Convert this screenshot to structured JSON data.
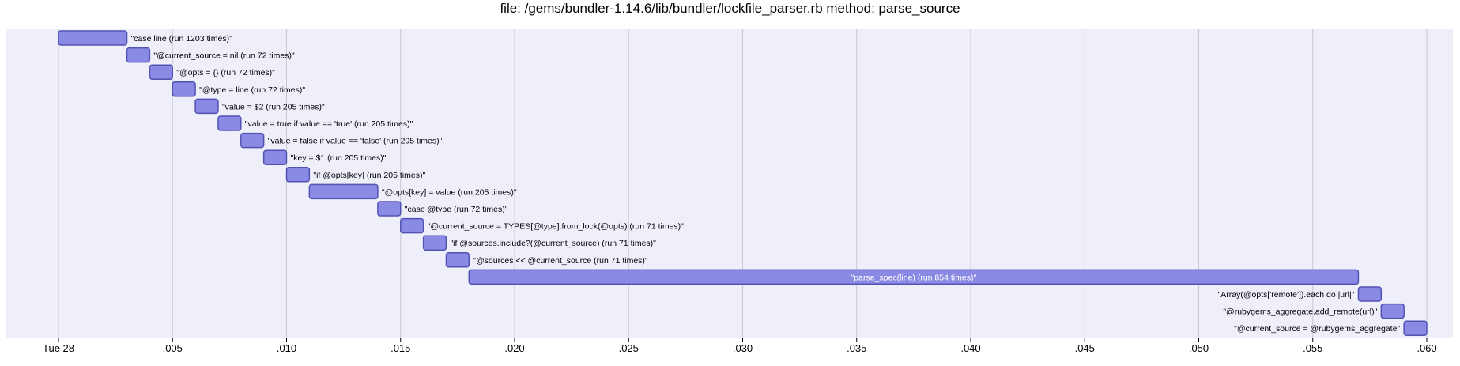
{
  "title": "file: /gems/bundler-1.14.6/lib/bundler/lockfile_parser.rb method: parse_source",
  "colors": {
    "background_band": "#efeffa",
    "grid": "#c8c8d4",
    "bar_fill": "#8a8ae4",
    "bar_stroke": "#5252b5",
    "axis_line": "#000000"
  },
  "chart_data": {
    "type": "gantt",
    "title": "file: /gems/bundler-1.14.6/lib/bundler/lockfile_parser.rb method: parse_source",
    "xlim": [
      0,
      0.0605
    ],
    "ticks": [
      {
        "value": 0,
        "label": "Tue 28"
      },
      {
        "value": 0.005,
        "label": ".005"
      },
      {
        "value": 0.01,
        "label": ".010"
      },
      {
        "value": 0.015,
        "label": ".015"
      },
      {
        "value": 0.02,
        "label": ".020"
      },
      {
        "value": 0.025,
        "label": ".025"
      },
      {
        "value": 0.03,
        "label": ".030"
      },
      {
        "value": 0.035,
        "label": ".035"
      },
      {
        "value": 0.04,
        "label": ".040"
      },
      {
        "value": 0.045,
        "label": ".045"
      },
      {
        "value": 0.05,
        "label": ".050"
      },
      {
        "value": 0.055,
        "label": ".055"
      },
      {
        "value": 0.06,
        "label": ".060"
      }
    ],
    "grid": true,
    "tasks": [
      {
        "label": "\"case line (run 1203 times)\"",
        "start": 0.0,
        "end": 0.003,
        "label_position": "right"
      },
      {
        "label": "\"@current_source = nil (run 72 times)\"",
        "start": 0.003,
        "end": 0.004,
        "label_position": "right"
      },
      {
        "label": "\"@opts = {} (run 72 times)\"",
        "start": 0.004,
        "end": 0.005,
        "label_position": "right"
      },
      {
        "label": "\"@type = line (run 72 times)\"",
        "start": 0.005,
        "end": 0.006,
        "label_position": "right"
      },
      {
        "label": "\"value = $2 (run 205 times)\"",
        "start": 0.006,
        "end": 0.007,
        "label_position": "right"
      },
      {
        "label": "\"value = true if value == 'true' (run 205 times)\"",
        "start": 0.007,
        "end": 0.008,
        "label_position": "right"
      },
      {
        "label": "\"value = false if value == 'false' (run 205 times)\"",
        "start": 0.008,
        "end": 0.009,
        "label_position": "right"
      },
      {
        "label": "\"key = $1 (run 205 times)\"",
        "start": 0.009,
        "end": 0.01,
        "label_position": "right"
      },
      {
        "label": "\"if @opts[key] (run 205 times)\"",
        "start": 0.01,
        "end": 0.011,
        "label_position": "right"
      },
      {
        "label": "\"@opts[key] = value (run 205 times)\"",
        "start": 0.011,
        "end": 0.014,
        "label_position": "right"
      },
      {
        "label": "\"case @type (run 72 times)\"",
        "start": 0.014,
        "end": 0.015,
        "label_position": "right"
      },
      {
        "label": "\"@current_source = TYPES[@type].from_lock(@opts) (run 71 times)\"",
        "start": 0.015,
        "end": 0.016,
        "label_position": "right"
      },
      {
        "label": "\"if @sources.include?(@current_source) (run 71 times)\"",
        "start": 0.016,
        "end": 0.017,
        "label_position": "right"
      },
      {
        "label": "\"@sources << @current_source (run 71 times)\"",
        "start": 0.017,
        "end": 0.018,
        "label_position": "right"
      },
      {
        "label": "\"parse_spec(line) (run 854 times)\"",
        "start": 0.018,
        "end": 0.057,
        "label_position": "inside"
      },
      {
        "label": "\"Array(@opts['remote']).each do |url|\"",
        "start": 0.057,
        "end": 0.058,
        "label_position": "left"
      },
      {
        "label": "\"@rubygems_aggregate.add_remote(url)\"",
        "start": 0.058,
        "end": 0.059,
        "label_position": "left"
      },
      {
        "label": "\"@current_source = @rubygems_aggregate\"",
        "start": 0.059,
        "end": 0.06,
        "label_position": "left"
      }
    ]
  }
}
